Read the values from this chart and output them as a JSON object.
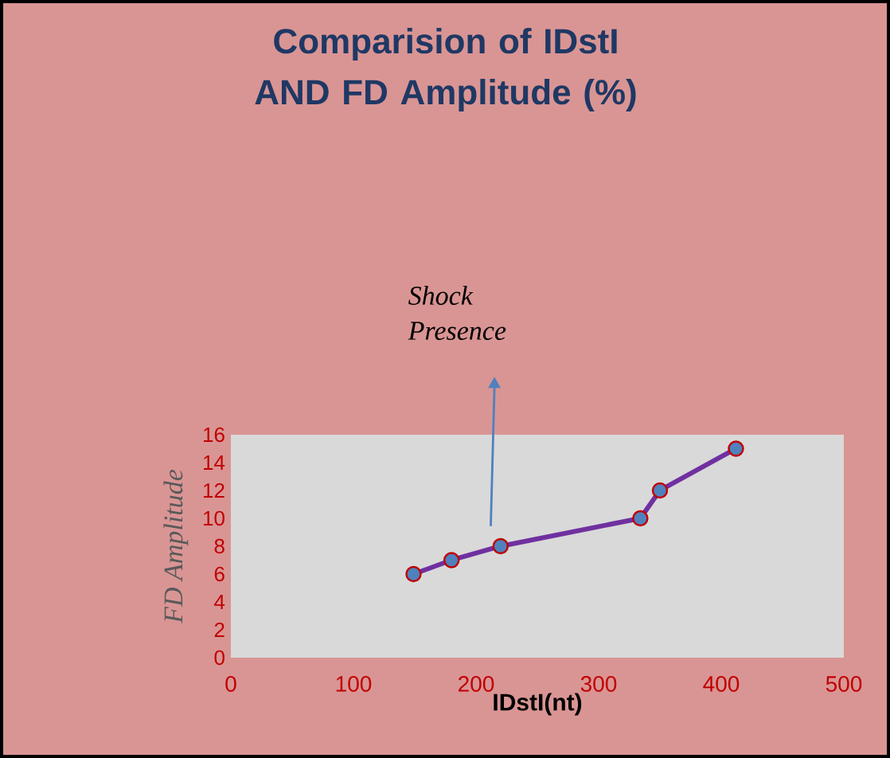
{
  "chart_data": {
    "type": "line",
    "title": "Comparision of IDstI AND FD Amplitude (%)",
    "xlabel": "IDstI(nt)",
    "ylabel": "FD Amplitude",
    "x": [
      149,
      180,
      220,
      334,
      350,
      412
    ],
    "series": [
      {
        "color": "#7030a0",
        "values": [
          6,
          7,
          8,
          10,
          12,
          15
        ]
      }
    ],
    "xlim": [
      0,
      500
    ],
    "xticks": [
      0,
      100,
      200,
      300,
      400,
      500
    ],
    "ylim": [
      0,
      16
    ],
    "yticks": [
      0,
      2,
      4,
      6,
      8,
      10,
      12,
      14,
      16
    ],
    "grid": false,
    "marker": "circle",
    "line_style": "solid",
    "annotations": [
      "Shock Presence"
    ]
  }
}
